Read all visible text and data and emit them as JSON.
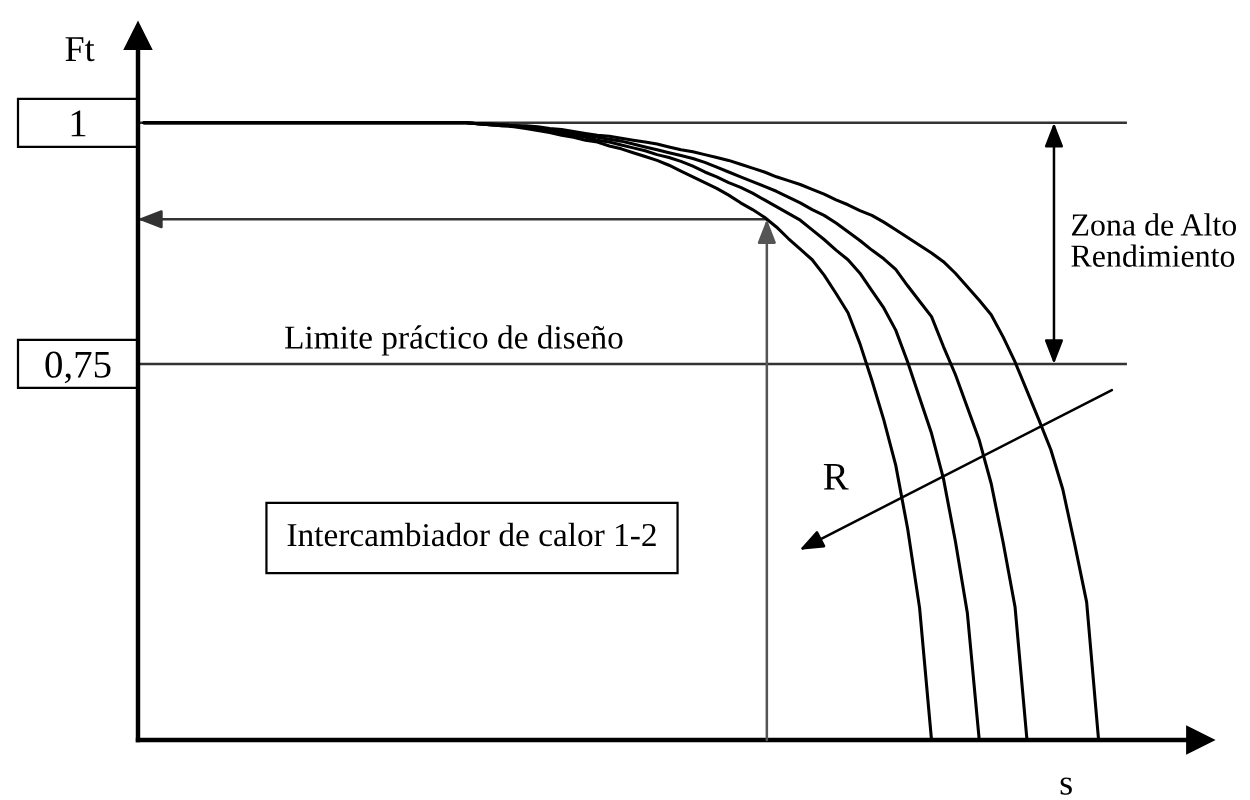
{
  "chart_data": {
    "type": "line",
    "xlabel": "s",
    "ylabel": "Ft",
    "categories": [
      null,
      null,
      null,
      null,
      null,
      null,
      null,
      null,
      null,
      null,
      null,
      null,
      null,
      null,
      null,
      null,
      null,
      null,
      null,
      null,
      null,
      null,
      null,
      null,
      null,
      null,
      null,
      null,
      null,
      null,
      null,
      null,
      null,
      null,
      null,
      null,
      null,
      null,
      null,
      null,
      null,
      null,
      null,
      null,
      null,
      null,
      null,
      null,
      null,
      null,
      null,
      null,
      null,
      null,
      null,
      null,
      null,
      null,
      null,
      null,
      null,
      null,
      null,
      null,
      null,
      null,
      null,
      null,
      null,
      null,
      null,
      null,
      null,
      null,
      null,
      null,
      null,
      null,
      null,
      null,
      null,
      null,
      null,
      null,
      null,
      null,
      null,
      null,
      null
    ],
    "series": [
      {
        "color": "#000000",
        "values": [
          1,
          1,
          1,
          1,
          1,
          1,
          1,
          1,
          1,
          1,
          1,
          1,
          1,
          1,
          1,
          1,
          1,
          1,
          1,
          1,
          1,
          1,
          1,
          1,
          1,
          1,
          1,
          1,
          0.999,
          0.998,
          0.997,
          0.996,
          0.994,
          0.992,
          0.99,
          0.987,
          0.985,
          0.982,
          0.98,
          0.976,
          0.973,
          0.969,
          0.965,
          0.961,
          0.956,
          0.95,
          0.944,
          0.938,
          0.932,
          0.925,
          0.917,
          0.91,
          0.902,
          0.892,
          0.88,
          0.869,
          0.858,
          0.842,
          0.823,
          0.803,
          0.771,
          0.733,
          0.692,
          0.645,
          0.579,
          0.497,
          0.36,
          null,
          null,
          null,
          null,
          null,
          null,
          null,
          null,
          null,
          null,
          null,
          null,
          null,
          null,
          null,
          null,
          null,
          null,
          null,
          null,
          null,
          null
        ]
      },
      {
        "color": "#000000",
        "values": [
          1,
          1,
          1,
          1,
          1,
          1,
          1,
          1,
          1,
          1,
          1,
          1,
          1,
          1,
          1,
          1,
          1,
          1,
          1,
          1,
          1,
          1,
          1,
          1,
          1,
          1,
          1,
          1,
          0.999,
          0.998,
          0.997,
          0.997,
          0.996,
          0.993,
          0.991,
          0.989,
          0.987,
          0.985,
          0.982,
          0.98,
          0.977,
          0.974,
          0.971,
          0.967,
          0.964,
          0.96,
          0.955,
          0.949,
          0.944,
          0.938,
          0.933,
          0.927,
          0.92,
          0.913,
          0.906,
          0.899,
          0.889,
          0.879,
          0.868,
          0.858,
          0.844,
          0.826,
          0.808,
          0.785,
          0.752,
          0.715,
          0.678,
          0.631,
          0.566,
          0.492,
          0.36,
          null,
          null,
          null,
          null,
          null,
          null,
          null,
          null,
          null,
          null,
          null,
          null,
          null,
          null,
          null,
          null,
          null,
          null
        ]
      },
      {
        "color": "#000000",
        "values": [
          1,
          1,
          1,
          1,
          1,
          1,
          1,
          1,
          1,
          1,
          1,
          1,
          1,
          1,
          1,
          1,
          1,
          1,
          1,
          1,
          1,
          1,
          1,
          1,
          1,
          1,
          1,
          1,
          0.999,
          0.998,
          0.998,
          0.997,
          0.996,
          0.995,
          0.993,
          0.991,
          0.989,
          0.987,
          0.985,
          0.983,
          0.981,
          0.978,
          0.975,
          0.972,
          0.969,
          0.966,
          0.963,
          0.959,
          0.954,
          0.949,
          0.944,
          0.939,
          0.934,
          0.929,
          0.923,
          0.917,
          0.91,
          0.904,
          0.896,
          0.887,
          0.878,
          0.868,
          0.859,
          0.848,
          0.831,
          0.815,
          0.799,
          0.768,
          0.739,
          0.705,
          0.671,
          0.626,
          0.565,
          0.498,
          0.36,
          null,
          null,
          null,
          null,
          null,
          null,
          null,
          null,
          null,
          null,
          null,
          null,
          null,
          null
        ]
      },
      {
        "color": "#000000",
        "values": [
          1,
          1,
          1,
          1,
          1,
          1,
          1,
          1,
          1,
          1,
          1,
          1,
          1,
          1,
          1,
          1,
          1,
          1,
          1,
          1,
          1,
          1,
          1,
          1,
          1,
          1,
          1,
          1,
          0.999,
          0.999,
          0.998,
          0.997,
          0.997,
          0.996,
          0.994,
          0.993,
          0.991,
          0.989,
          0.987,
          0.986,
          0.984,
          0.982,
          0.98,
          0.978,
          0.975,
          0.972,
          0.97,
          0.967,
          0.964,
          0.961,
          0.957,
          0.953,
          0.949,
          0.944,
          0.94,
          0.936,
          0.931,
          0.926,
          0.92,
          0.915,
          0.909,
          0.904,
          0.897,
          0.889,
          0.881,
          0.873,
          0.865,
          0.856,
          0.844,
          0.83,
          0.816,
          0.801,
          0.778,
          0.752,
          0.722,
          0.692,
          0.661,
          0.62,
          0.563,
          0.503,
          0.36,
          null,
          null,
          null,
          null,
          null,
          null,
          null,
          null
        ]
      }
    ],
    "ylim": [
      0.36,
      1.09
    ],
    "yticks": [
      {
        "value": 0.75,
        "label": "0,75"
      },
      1
    ],
    "tick_labels": "y",
    "line_style": "solid",
    "ref_lines": [
      {
        "axis": "y",
        "value": 1
      },
      {
        "axis": "y",
        "value": 0.75,
        "label": "Limite práctico de diseño"
      },
      {
        "axis": "y",
        "value": 0.9
      }
    ],
    "annotations": [
      "Intercambiador de calor 1-2",
      "R",
      "Zona de Alto\nRendimiento"
    ]
  }
}
